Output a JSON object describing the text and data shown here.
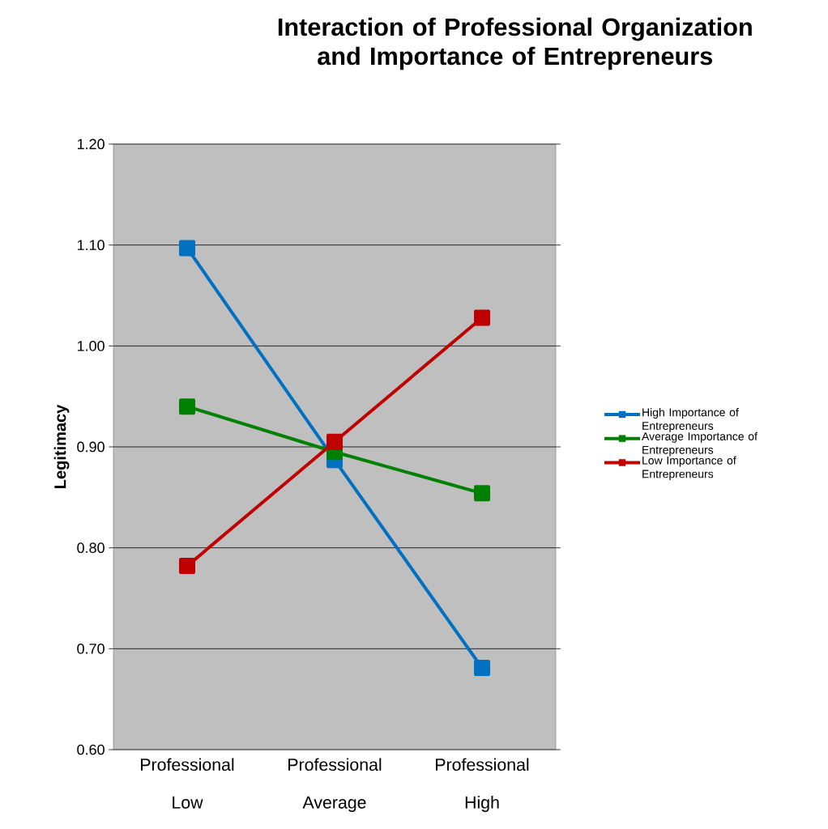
{
  "chart_data": {
    "type": "line",
    "title": "Interaction of Professional Organization and Importance of Entrepreneurs",
    "ylabel": "Legitimacy",
    "categories": [
      "Professional Low",
      "Professional Average",
      "Professional High"
    ],
    "series": [
      {
        "name": "High Importance of Entrepreneurs",
        "color": "#0070c0",
        "values": [
          1.097,
          0.887,
          0.681
        ]
      },
      {
        "name": "Average Importance of Entrepreneurs",
        "color": "#008000",
        "values": [
          0.94,
          0.895,
          0.854
        ]
      },
      {
        "name": "Low Importance of Entrepreneurs",
        "color": "#c00000",
        "values": [
          0.782,
          0.905,
          1.028
        ]
      }
    ],
    "ylim": [
      0.6,
      1.2
    ],
    "yticks": [
      {
        "value": 0.6,
        "label": "0.60"
      },
      {
        "value": 0.7,
        "label": "0.70"
      },
      {
        "value": 0.8,
        "label": "0.80"
      },
      {
        "value": 0.9,
        "label": "0.90"
      },
      {
        "value": 1.0,
        "label": "1.00"
      },
      {
        "value": 1.1,
        "label": "1.10"
      },
      {
        "value": 1.2,
        "label": "1.20"
      }
    ],
    "grid": "y",
    "legend": "right",
    "marker": "square",
    "line_style": "solid"
  }
}
